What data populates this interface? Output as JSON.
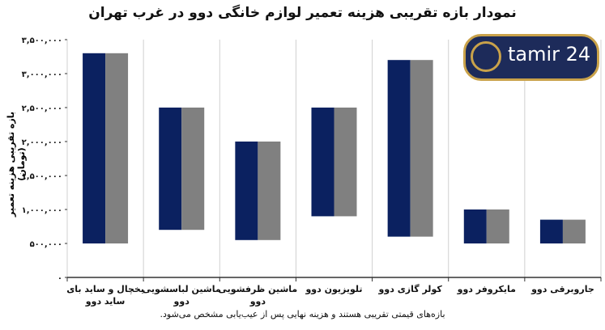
{
  "chart_data": {
    "type": "bar",
    "subtype": "floating-range",
    "title": "نمودار بازه تقریبی هزینه تعمیر لوازم خانگی دوو در غرب تهران",
    "ylabel": "بازه تقریبی هزینه تعمیر (تومان)",
    "note": "بازه‌های قیمتی تقریبی هستند و هزینه نهایی پس از عیب‌یابی مشخص می‌شود.",
    "ylim": [
      0,
      3500000
    ],
    "yticks": [
      0,
      500000,
      1000000,
      1500000,
      2000000,
      2500000,
      3000000,
      3500000
    ],
    "ytick_labels": [
      "۰",
      "۵۰۰,۰۰۰",
      "۱,۰۰۰,۰۰۰",
      "۱,۵۰۰,۰۰۰",
      "۲,۰۰۰,۰۰۰",
      "۲,۵۰۰,۰۰۰",
      "۳,۰۰۰,۰۰۰",
      "۳,۵۰۰,۰۰۰"
    ],
    "grid": "vertical",
    "categories": [
      [
        "یخچال و ساید بای",
        "ساید دوو"
      ],
      [
        "ماشین لباسشویی",
        "دوو"
      ],
      [
        "ماشین ظرفشویی",
        "دوو"
      ],
      [
        "تلویزیون دوو"
      ],
      [
        "کولر گازی دوو"
      ],
      [
        "مایکروفر دوو"
      ],
      [
        "جاروبرقی دوو"
      ]
    ],
    "series": [
      {
        "color": "#0b2160",
        "min": [
          500000,
          700000,
          550000,
          900000,
          600000,
          500000,
          500000
        ],
        "max": [
          3300000,
          2500000,
          2000000,
          2500000,
          3200000,
          1000000,
          850000
        ]
      },
      {
        "color": "#808080",
        "min": [
          500000,
          700000,
          550000,
          900000,
          600000,
          500000,
          500000
        ],
        "max": [
          3300000,
          2500000,
          2000000,
          2500000,
          3200000,
          1000000,
          850000
        ]
      }
    ]
  },
  "logo": {
    "text": "tamir 24"
  }
}
